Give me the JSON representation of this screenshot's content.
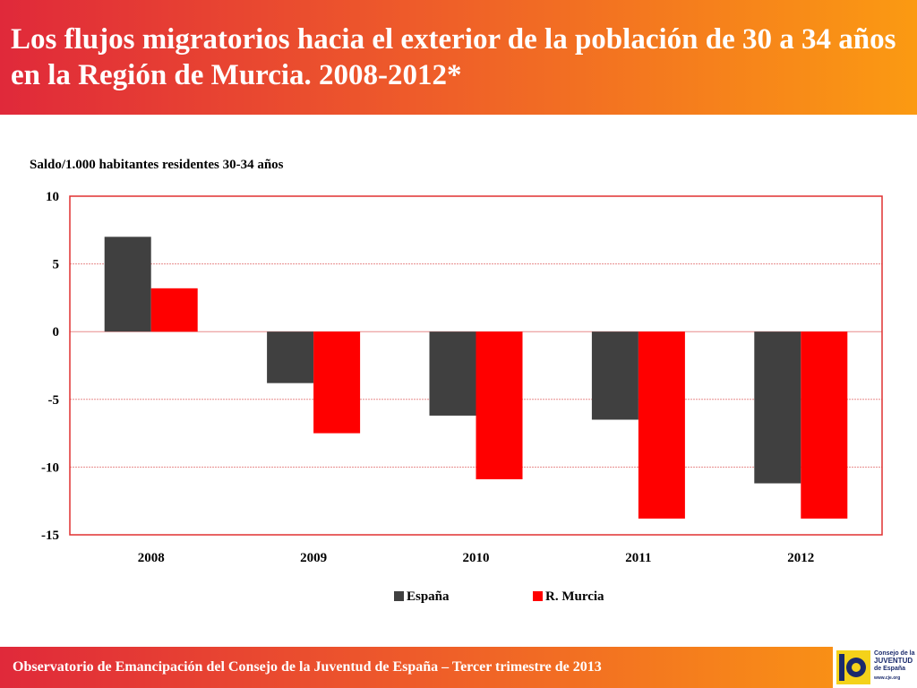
{
  "header": {
    "title": "Los flujos migratorios hacia el exterior de la población de 30 a 34 años en la Región de Murcia. 2008-2012*"
  },
  "footer": {
    "text": "Observatorio de Emancipación del Consejo de la Juventud de España – Tercer trimestre de 2013"
  },
  "logo": {
    "line1": "Consejo de la",
    "line2": "JUVENTUD",
    "line3": "de España",
    "url": "www.cje.org"
  },
  "colors": {
    "espana": "#404040",
    "murcia": "#ff0000",
    "grid": "#e88a8a",
    "border": "#e03030",
    "header_start": "#e0293a",
    "header_end": "#fb9a12"
  },
  "chart_data": {
    "type": "bar",
    "title": "Los flujos migratorios hacia el exterior de la población de 30 a 34 años en la Región de Murcia. 2008-2012*",
    "ylabel": "Saldo/1.000 habitantes residentes 30-34 años",
    "xlabel": "",
    "categories": [
      "2008",
      "2009",
      "2010",
      "2011",
      "2012"
    ],
    "series": [
      {
        "name": "España",
        "values": [
          7.0,
          -3.8,
          -6.2,
          -6.5,
          -11.2
        ]
      },
      {
        "name": "R. Murcia",
        "values": [
          3.2,
          -7.5,
          -10.9,
          -13.8,
          -13.8
        ]
      }
    ],
    "ylim": [
      -15,
      10
    ],
    "yticks": [
      10,
      5,
      0,
      -5,
      -10,
      -15
    ],
    "grid": true,
    "legend": "bottom-center"
  }
}
